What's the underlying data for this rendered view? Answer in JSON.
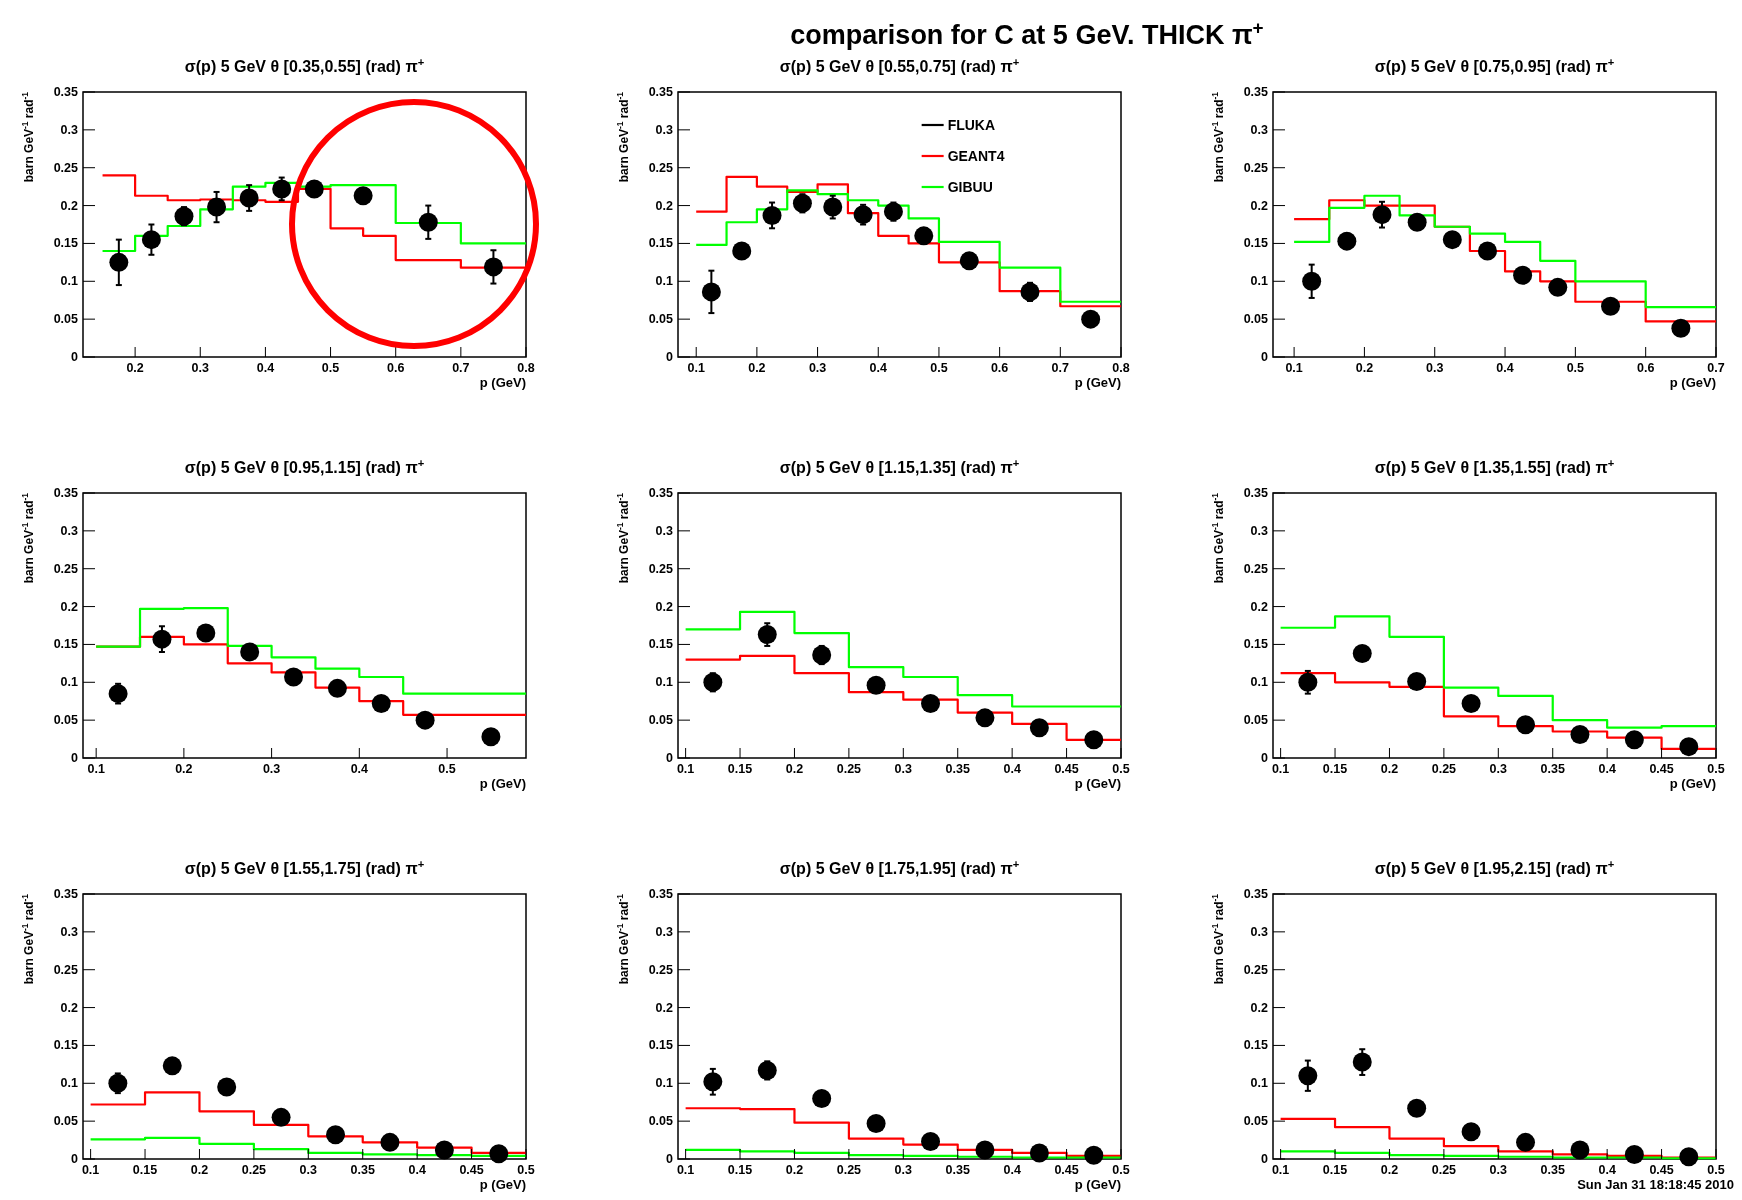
{
  "chart_data": [
    {
      "type": "step",
      "title": "σ(p)  5 GeV θ [0.35,0.55] (rad) π$^{+}$",
      "xlabel": "p (GeV)",
      "ylabel": "barn GeV$^{-1}$ rad$^{-1}$",
      "xlim": [
        0.12,
        0.8
      ],
      "ylim": [
        0,
        0.35
      ],
      "xticks": [
        0.2,
        0.3,
        0.4,
        0.5,
        0.6,
        0.7,
        0.8
      ],
      "yticks": [
        0,
        0.05,
        0.1,
        0.15,
        0.2,
        0.25,
        0.3,
        0.35
      ],
      "annotations": [
        "comparison for C at  5 GeV.  THICK π$^{+}$"
      ],
      "series": [
        {
          "color": "#ff0000",
          "x": [
            0.15,
            0.2,
            0.25,
            0.3,
            0.35,
            0.4,
            0.45,
            0.5,
            0.55,
            0.6,
            0.7,
            0.8
          ],
          "values": [
            0.24,
            0.213,
            0.207,
            0.208,
            0.207,
            0.205,
            0.222,
            0.17,
            0.16,
            0.128,
            0.118,
            0.118
          ]
        },
        {
          "color": "#00ff00",
          "x": [
            0.15,
            0.2,
            0.25,
            0.3,
            0.35,
            0.4,
            0.45,
            0.5,
            0.55,
            0.6,
            0.7,
            0.8
          ],
          "values": [
            0.14,
            0.16,
            0.173,
            0.195,
            0.225,
            0.23,
            0.225,
            0.227,
            0.227,
            0.177,
            0.15,
            0.15
          ]
        },
        {
          "type": "scatter",
          "color": "#000000",
          "marker": "circle",
          "x": [
            0.175,
            0.225,
            0.275,
            0.325,
            0.375,
            0.425,
            0.475,
            0.55,
            0.65,
            0.75
          ],
          "values": [
            0.125,
            0.155,
            0.186,
            0.198,
            0.21,
            0.222,
            0.222,
            0.213,
            0.178,
            0.119
          ],
          "errors": [
            0.03,
            0.02,
            0.012,
            0.02,
            0.017,
            0.015,
            0.01,
            0.01,
            0.022,
            0.022
          ]
        }
      ]
    },
    {
      "type": "step",
      "title": "σ(p)  5 GeV θ [0.55,0.75] (rad) π$^{+}$",
      "xlabel": "p (GeV)",
      "ylabel": "barn GeV$^{-1}$ rad$^{-1}$",
      "xlim": [
        0.07,
        0.8
      ],
      "ylim": [
        0,
        0.35
      ],
      "xticks": [
        0.1,
        0.2,
        0.3,
        0.4,
        0.5,
        0.6,
        0.7,
        0.8
      ],
      "yticks": [
        0,
        0.05,
        0.1,
        0.15,
        0.2,
        0.25,
        0.3,
        0.35
      ],
      "legend": "top",
      "series": [
        {
          "name": "FLUKA",
          "color": "#000000"
        },
        {
          "name": "GEANT4",
          "color": "#ff0000",
          "x": [
            0.1,
            0.15,
            0.2,
            0.25,
            0.3,
            0.35,
            0.4,
            0.45,
            0.5,
            0.6,
            0.7,
            0.8
          ],
          "values": [
            0.192,
            0.238,
            0.225,
            0.218,
            0.228,
            0.19,
            0.16,
            0.15,
            0.125,
            0.087,
            0.067,
            0.067
          ]
        },
        {
          "name": "GIBUU",
          "color": "#00ff00",
          "x": [
            0.1,
            0.15,
            0.2,
            0.25,
            0.3,
            0.35,
            0.4,
            0.45,
            0.5,
            0.6,
            0.7,
            0.8
          ],
          "values": [
            0.148,
            0.178,
            0.195,
            0.22,
            0.215,
            0.207,
            0.2,
            0.183,
            0.152,
            0.118,
            0.073,
            0.073
          ]
        },
        {
          "type": "scatter",
          "color": "#000000",
          "marker": "circle",
          "x": [
            0.125,
            0.175,
            0.225,
            0.275,
            0.325,
            0.375,
            0.425,
            0.475,
            0.55,
            0.65,
            0.75
          ],
          "values": [
            0.086,
            0.14,
            0.187,
            0.203,
            0.198,
            0.188,
            0.192,
            0.16,
            0.127,
            0.086,
            0.05
          ],
          "errors": [
            0.028,
            0.01,
            0.017,
            0.012,
            0.015,
            0.013,
            0.012,
            0.008,
            0.007,
            0.012,
            0.005
          ]
        }
      ]
    },
    {
      "type": "step",
      "title": "σ(p)  5 GeV θ [0.75,0.95] (rad) π$^{+}$",
      "xlabel": "p (GeV)",
      "ylabel": "barn GeV$^{-1}$ rad$^{-1}$",
      "xlim": [
        0.07,
        0.7
      ],
      "ylim": [
        0,
        0.35
      ],
      "xticks": [
        0.1,
        0.2,
        0.3,
        0.4,
        0.5,
        0.6,
        0.7
      ],
      "yticks": [
        0,
        0.05,
        0.1,
        0.15,
        0.2,
        0.25,
        0.3,
        0.35
      ],
      "series": [
        {
          "color": "#ff0000",
          "x": [
            0.1,
            0.15,
            0.2,
            0.25,
            0.3,
            0.35,
            0.4,
            0.45,
            0.5,
            0.6,
            0.7
          ],
          "values": [
            0.182,
            0.207,
            0.2,
            0.2,
            0.172,
            0.14,
            0.113,
            0.1,
            0.073,
            0.047,
            0.047
          ]
        },
        {
          "color": "#00ff00",
          "x": [
            0.1,
            0.15,
            0.2,
            0.25,
            0.3,
            0.35,
            0.4,
            0.45,
            0.5,
            0.6,
            0.7
          ],
          "values": [
            0.152,
            0.197,
            0.213,
            0.187,
            0.172,
            0.163,
            0.152,
            0.127,
            0.1,
            0.066,
            0.066
          ]
        },
        {
          "type": "scatter",
          "color": "#000000",
          "marker": "circle",
          "x": [
            0.125,
            0.175,
            0.225,
            0.275,
            0.325,
            0.375,
            0.425,
            0.475,
            0.55,
            0.65
          ],
          "values": [
            0.1,
            0.153,
            0.188,
            0.178,
            0.155,
            0.14,
            0.108,
            0.092,
            0.067,
            0.038
          ],
          "errors": [
            0.022,
            0.01,
            0.017,
            0.01,
            0.007,
            0.007,
            0.006,
            0.006,
            0.005,
            0.005
          ]
        }
      ]
    },
    {
      "type": "step",
      "title": "σ(p)  5 GeV θ [0.95,1.15] (rad) π$^{+}$",
      "xlabel": "p (GeV)",
      "ylabel": "barn GeV$^{-1}$ rad$^{-1}$",
      "xlim": [
        0.085,
        0.59
      ],
      "ylim": [
        0,
        0.35
      ],
      "xticks": [
        0.1,
        0.2,
        0.3,
        0.4,
        0.5
      ],
      "yticks": [
        0,
        0.05,
        0.1,
        0.15,
        0.2,
        0.25,
        0.3,
        0.35
      ],
      "series": [
        {
          "color": "#ff0000",
          "x": [
            0.1,
            0.15,
            0.2,
            0.25,
            0.3,
            0.35,
            0.4,
            0.45,
            0.59
          ],
          "values": [
            0.147,
            0.16,
            0.15,
            0.125,
            0.113,
            0.093,
            0.075,
            0.057,
            0.057
          ]
        },
        {
          "color": "#00ff00",
          "x": [
            0.1,
            0.15,
            0.2,
            0.25,
            0.3,
            0.35,
            0.4,
            0.45,
            0.59
          ],
          "values": [
            0.147,
            0.197,
            0.198,
            0.148,
            0.133,
            0.118,
            0.107,
            0.085,
            0.085
          ]
        },
        {
          "type": "scatter",
          "color": "#000000",
          "marker": "circle",
          "x": [
            0.125,
            0.175,
            0.225,
            0.275,
            0.325,
            0.375,
            0.425,
            0.475,
            0.55
          ],
          "values": [
            0.085,
            0.157,
            0.165,
            0.14,
            0.107,
            0.092,
            0.072,
            0.05,
            0.028
          ],
          "errors": [
            0.013,
            0.017,
            0.01,
            0.007,
            0.006,
            0.005,
            0.005,
            0.004,
            0.004
          ]
        }
      ]
    },
    {
      "type": "step",
      "title": "σ(p)  5 GeV θ [1.15,1.35] (rad) π$^{+}$",
      "xlabel": "p (GeV)",
      "ylabel": "barn GeV$^{-1}$ rad$^{-1}$",
      "xlim": [
        0.093,
        0.5
      ],
      "ylim": [
        0,
        0.35
      ],
      "xticks": [
        0.1,
        0.15,
        0.2,
        0.25,
        0.3,
        0.35,
        0.4,
        0.45,
        0.5
      ],
      "yticks": [
        0,
        0.05,
        0.1,
        0.15,
        0.2,
        0.25,
        0.3,
        0.35
      ],
      "series": [
        {
          "color": "#ff0000",
          "x": [
            0.1,
            0.15,
            0.2,
            0.25,
            0.3,
            0.35,
            0.4,
            0.45,
            0.5
          ],
          "values": [
            0.13,
            0.135,
            0.112,
            0.087,
            0.077,
            0.06,
            0.045,
            0.024,
            0.024
          ]
        },
        {
          "color": "#00ff00",
          "x": [
            0.1,
            0.15,
            0.2,
            0.25,
            0.3,
            0.35,
            0.4,
            0.5
          ],
          "values": [
            0.17,
            0.193,
            0.165,
            0.12,
            0.107,
            0.083,
            0.068,
            0.068
          ]
        },
        {
          "type": "scatter",
          "color": "#000000",
          "marker": "circle",
          "x": [
            0.125,
            0.175,
            0.225,
            0.275,
            0.325,
            0.375,
            0.425,
            0.475
          ],
          "values": [
            0.1,
            0.163,
            0.136,
            0.096,
            0.072,
            0.053,
            0.04,
            0.024
          ],
          "errors": [
            0.012,
            0.015,
            0.012,
            0.007,
            0.006,
            0.005,
            0.004,
            0.004
          ]
        }
      ]
    },
    {
      "type": "step",
      "title": "σ(p)  5 GeV θ [1.35,1.55] (rad) π$^{+}$",
      "xlabel": "p (GeV)",
      "ylabel": "barn GeV$^{-1}$ rad$^{-1}$",
      "xlim": [
        0.093,
        0.5
      ],
      "ylim": [
        0,
        0.35
      ],
      "xticks": [
        0.1,
        0.15,
        0.2,
        0.25,
        0.3,
        0.35,
        0.4,
        0.45,
        0.5
      ],
      "yticks": [
        0,
        0.05,
        0.1,
        0.15,
        0.2,
        0.25,
        0.3,
        0.35
      ],
      "series": [
        {
          "color": "#ff0000",
          "x": [
            0.1,
            0.15,
            0.2,
            0.25,
            0.3,
            0.35,
            0.4,
            0.45,
            0.5
          ],
          "values": [
            0.112,
            0.1,
            0.094,
            0.055,
            0.042,
            0.035,
            0.027,
            0.012,
            0.012
          ]
        },
        {
          "color": "#00ff00",
          "x": [
            0.1,
            0.15,
            0.2,
            0.25,
            0.3,
            0.35,
            0.4,
            0.45,
            0.5
          ],
          "values": [
            0.172,
            0.187,
            0.16,
            0.093,
            0.082,
            0.05,
            0.04,
            0.042,
            0.042
          ]
        },
        {
          "type": "scatter",
          "color": "#000000",
          "marker": "circle",
          "x": [
            0.125,
            0.175,
            0.225,
            0.275,
            0.325,
            0.375,
            0.425,
            0.475
          ],
          "values": [
            0.1,
            0.138,
            0.101,
            0.072,
            0.044,
            0.031,
            0.024,
            0.015
          ],
          "errors": [
            0.015,
            0.01,
            0.006,
            0.005,
            0.004,
            0.004,
            0.003,
            0.003
          ]
        }
      ]
    },
    {
      "type": "step",
      "title": "σ(p)  5 GeV θ [1.55,1.75] (rad) π$^{+}$",
      "xlabel": "p (GeV)",
      "ylabel": "barn GeV$^{-1}$ rad$^{-1}$",
      "xlim": [
        0.093,
        0.5
      ],
      "ylim": [
        0,
        0.35
      ],
      "xticks": [
        0.1,
        0.15,
        0.2,
        0.25,
        0.3,
        0.35,
        0.4,
        0.45,
        0.5
      ],
      "yticks": [
        0,
        0.05,
        0.1,
        0.15,
        0.2,
        0.25,
        0.3,
        0.35
      ],
      "series": [
        {
          "color": "#ff0000",
          "x": [
            0.1,
            0.15,
            0.2,
            0.25,
            0.3,
            0.35,
            0.4,
            0.45,
            0.5
          ],
          "values": [
            0.072,
            0.088,
            0.063,
            0.045,
            0.03,
            0.022,
            0.015,
            0.008,
            0.008
          ]
        },
        {
          "color": "#00ff00",
          "x": [
            0.1,
            0.15,
            0.2,
            0.25,
            0.3,
            0.35,
            0.4,
            0.45,
            0.5
          ],
          "values": [
            0.026,
            0.028,
            0.02,
            0.013,
            0.008,
            0.006,
            0.005,
            0.004,
            0.004
          ]
        },
        {
          "type": "scatter",
          "color": "#000000",
          "marker": "circle",
          "x": [
            0.125,
            0.175,
            0.225,
            0.275,
            0.325,
            0.375,
            0.425,
            0.475
          ],
          "values": [
            0.1,
            0.123,
            0.095,
            0.055,
            0.032,
            0.022,
            0.012,
            0.007
          ],
          "errors": [
            0.013,
            0.01,
            0.006,
            0.005,
            0.004,
            0.003,
            0.003,
            0.003
          ]
        }
      ]
    },
    {
      "type": "step",
      "title": "σ(p)  5 GeV θ [1.75,1.95] (rad) π$^{+}$",
      "xlabel": "p (GeV)",
      "ylabel": "barn GeV$^{-1}$ rad$^{-1}$",
      "xlim": [
        0.093,
        0.5
      ],
      "ylim": [
        0,
        0.35
      ],
      "xticks": [
        0.1,
        0.15,
        0.2,
        0.25,
        0.3,
        0.35,
        0.4,
        0.45,
        0.5
      ],
      "yticks": [
        0,
        0.05,
        0.1,
        0.15,
        0.2,
        0.25,
        0.3,
        0.35
      ],
      "series": [
        {
          "color": "#ff0000",
          "x": [
            0.1,
            0.15,
            0.2,
            0.25,
            0.3,
            0.35,
            0.4,
            0.45,
            0.5
          ],
          "values": [
            0.067,
            0.066,
            0.048,
            0.027,
            0.019,
            0.012,
            0.008,
            0.004,
            0.004
          ]
        },
        {
          "color": "#00ff00",
          "x": [
            0.1,
            0.15,
            0.2,
            0.25,
            0.3,
            0.35,
            0.4,
            0.45,
            0.5
          ],
          "values": [
            0.012,
            0.01,
            0.008,
            0.005,
            0.004,
            0.003,
            0.002,
            0.002,
            0.002
          ]
        },
        {
          "type": "scatter",
          "color": "#000000",
          "marker": "circle",
          "x": [
            0.125,
            0.175,
            0.225,
            0.275,
            0.325,
            0.375,
            0.425,
            0.475
          ],
          "values": [
            0.102,
            0.117,
            0.08,
            0.047,
            0.023,
            0.012,
            0.008,
            0.005
          ],
          "errors": [
            0.017,
            0.012,
            0.006,
            0.005,
            0.004,
            0.003,
            0.003,
            0.003
          ]
        }
      ]
    },
    {
      "type": "step",
      "title": "σ(p)  5 GeV θ [1.95,2.15] (rad) π$^{+}$",
      "ylabel": "barn GeV$^{-1}$ rad$^{-1}$",
      "xlim": [
        0.093,
        0.5
      ],
      "ylim": [
        0,
        0.35
      ],
      "xticks": [
        0.1,
        0.15,
        0.2,
        0.25,
        0.3,
        0.35,
        0.4,
        0.45,
        0.5
      ],
      "yticks": [
        0,
        0.05,
        0.1,
        0.15,
        0.2,
        0.25,
        0.3,
        0.35
      ],
      "annotations": [
        "Sun Jan 31 18:18:45 2010"
      ],
      "series": [
        {
          "color": "#ff0000",
          "x": [
            0.1,
            0.15,
            0.2,
            0.25,
            0.3,
            0.35,
            0.4,
            0.45,
            0.5
          ],
          "values": [
            0.053,
            0.042,
            0.027,
            0.017,
            0.01,
            0.006,
            0.004,
            0.002,
            0.002
          ]
        },
        {
          "color": "#00ff00",
          "x": [
            0.1,
            0.15,
            0.2,
            0.25,
            0.3,
            0.35,
            0.4,
            0.45,
            0.5
          ],
          "values": [
            0.01,
            0.008,
            0.005,
            0.004,
            0.003,
            0.002,
            0.002,
            0.001,
            0.001
          ]
        },
        {
          "type": "scatter",
          "color": "#000000",
          "marker": "circle",
          "x": [
            0.125,
            0.175,
            0.225,
            0.275,
            0.325,
            0.375,
            0.425,
            0.475
          ],
          "values": [
            0.11,
            0.128,
            0.067,
            0.036,
            0.022,
            0.012,
            0.006,
            0.003
          ],
          "errors": [
            0.02,
            0.017,
            0.008,
            0.005,
            0.004,
            0.003,
            0.003,
            0.003
          ]
        }
      ]
    }
  ]
}
